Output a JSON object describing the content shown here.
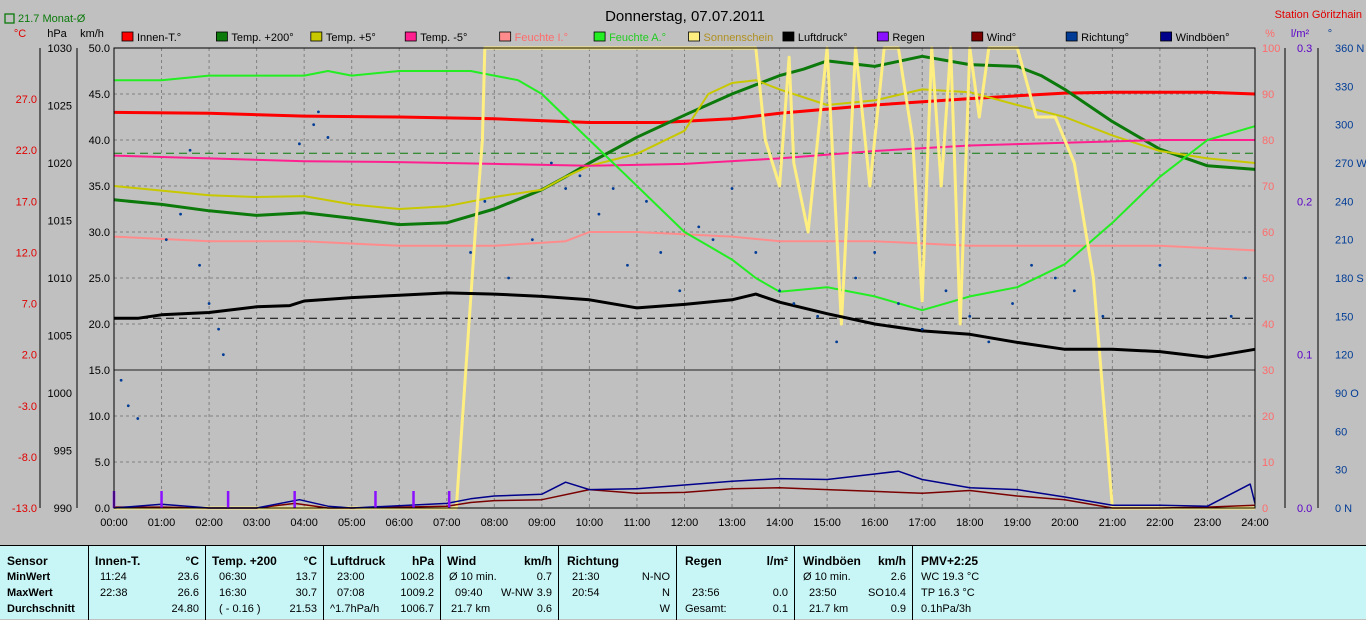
{
  "title": "Donnerstag, 07.07.2011",
  "station": "Station Göritzhain",
  "monthly_avg": "21.7 Monat-Ø",
  "unit_labels": {
    "celsius": "°C",
    "hpa": "hPa",
    "kmh": "km/h",
    "percent": "%",
    "lm2": "l/m²",
    "degree": "°"
  },
  "legend": [
    {
      "label": "Innen-T.°",
      "color": "#ff0000"
    },
    {
      "label": "Temp. +200°",
      "color": "#0b7a0b"
    },
    {
      "label": "Temp. +5°",
      "color": "#c8c800"
    },
    {
      "label": "Temp. -5°",
      "color": "#ff1f8f"
    },
    {
      "label": "Feuchte I.°",
      "color": "#ff8c8c"
    },
    {
      "label": "Feuchte A.°",
      "color": "#22ee22"
    },
    {
      "label": "Sonnenschein",
      "color": "#ffef80"
    },
    {
      "label": "Luftdruck°",
      "color": "#000000"
    },
    {
      "label": "Regen",
      "color": "#8a10ff"
    },
    {
      "label": "Wind°",
      "color": "#7a0000"
    },
    {
      "label": "Richtung°",
      "color": "#003c96"
    },
    {
      "label": "Windböen°",
      "color": "#00008b"
    }
  ],
  "chart_data": {
    "type": "line",
    "title": "Donnerstag, 07.07.2011",
    "x_unit": "hours",
    "xlim": [
      0,
      24
    ],
    "x_ticks": [
      "00:00",
      "01:00",
      "02:00",
      "03:00",
      "04:00",
      "05:00",
      "06:00",
      "07:00",
      "08:00",
      "09:00",
      "10:00",
      "11:00",
      "12:00",
      "13:00",
      "14:00",
      "15:00",
      "16:00",
      "17:00",
      "18:00",
      "19:00",
      "20:00",
      "21:00",
      "22:00",
      "23:00",
      "24:00"
    ],
    "axes": {
      "celsius": {
        "ticks": [
          "27.0",
          "22.0",
          "17.0",
          "12.0",
          "7.0",
          "2.0",
          "-3.0",
          "-8.0",
          "-13.0"
        ],
        "range": [
          -13,
          32
        ]
      },
      "hpa": {
        "ticks": [
          "1030",
          "1025",
          "1020",
          "1015",
          "1010",
          "1005",
          "1000",
          "995",
          "990"
        ],
        "range": [
          990,
          1030
        ]
      },
      "kmh": {
        "ticks": [
          "50.0",
          "45.0",
          "40.0",
          "35.0",
          "30.0",
          "25.0",
          "20.0",
          "15.0",
          "10.0",
          "5.0",
          "0.0"
        ],
        "range": [
          0,
          50
        ]
      },
      "percent": {
        "ticks": [
          "100",
          "90",
          "80",
          "70",
          "60",
          "50",
          "40",
          "30",
          "20",
          "10",
          "0"
        ],
        "range": [
          0,
          100
        ]
      },
      "lm2": {
        "ticks": [
          "0.3",
          "0.2",
          "0.1",
          "0.0"
        ],
        "range": [
          0,
          0.3
        ]
      },
      "degree": {
        "ticks": [
          "360 N",
          "330",
          "300",
          "270 W",
          "240",
          "210",
          "180 S",
          "150",
          "120",
          "90 O",
          "60",
          "30",
          "0 N"
        ],
        "range": [
          0,
          360
        ]
      }
    },
    "series": [
      {
        "name": "Innen-T.°",
        "axis": "kmh",
        "x": [
          0,
          2,
          4,
          6,
          8,
          10,
          11.5,
          13,
          14,
          16,
          18,
          19,
          20,
          21,
          22,
          23,
          24
        ],
        "y": [
          43.0,
          42.9,
          42.6,
          42.5,
          42.3,
          41.9,
          41.9,
          42.3,
          42.9,
          43.8,
          44.5,
          44.8,
          45.1,
          45.2,
          45.2,
          45.2,
          45.0
        ]
      },
      {
        "name": "Temp. +200°",
        "axis": "kmh",
        "x": [
          0,
          1,
          2,
          3,
          4,
          5,
          6,
          7,
          8,
          9,
          9.5,
          10,
          11,
          12,
          13,
          13.5,
          14,
          14.5,
          15,
          16,
          17,
          18,
          19,
          19.5,
          20,
          21,
          22,
          23,
          24
        ],
        "y": [
          33.5,
          33.0,
          32.3,
          31.8,
          32.1,
          31.5,
          30.8,
          31.0,
          32.5,
          34.6,
          36.0,
          37.5,
          40.3,
          42.7,
          45.0,
          46.0,
          47.0,
          47.7,
          48.6,
          48.0,
          49.1,
          48.2,
          48.0,
          47.0,
          45.5,
          42.0,
          39.0,
          37.2,
          36.8
        ]
      },
      {
        "name": "Temp. +5°",
        "axis": "kmh",
        "x": [
          0,
          1,
          2,
          3,
          4,
          5,
          6,
          7,
          8,
          9,
          9.5,
          10,
          11,
          12,
          12.5,
          13,
          13.5,
          14,
          15,
          16,
          17,
          18,
          19,
          20,
          21,
          22,
          23,
          24
        ],
        "y": [
          35.0,
          34.5,
          34.0,
          33.8,
          33.9,
          33.0,
          32.5,
          32.8,
          33.8,
          34.6,
          36.0,
          37.2,
          38.5,
          41.0,
          45.0,
          46.2,
          46.5,
          45.5,
          43.8,
          44.3,
          45.5,
          45.2,
          43.8,
          42.5,
          40.5,
          38.8,
          38.0,
          37.5
        ]
      },
      {
        "name": "Temp. -5°",
        "axis": "kmh",
        "x": [
          0,
          2,
          4,
          6,
          8,
          10,
          12,
          14,
          16,
          18,
          20,
          22,
          24
        ],
        "y": [
          38.3,
          38.0,
          37.7,
          37.6,
          37.4,
          37.2,
          37.4,
          38.0,
          38.8,
          39.4,
          39.7,
          40.0,
          40.0
        ]
      },
      {
        "name": "Feuchte I.°",
        "axis": "percent",
        "x": [
          0,
          2,
          4,
          6,
          8,
          9.5,
          10,
          11,
          13,
          14,
          16,
          18,
          20,
          22,
          24
        ],
        "y": [
          59,
          58,
          58,
          57,
          57,
          58,
          60,
          60,
          59,
          58,
          58,
          57,
          57,
          57,
          56
        ]
      },
      {
        "name": "Feuchte A.°",
        "axis": "percent",
        "x": [
          0,
          1,
          2,
          3,
          4,
          4.5,
          5,
          6,
          7,
          7.5,
          8,
          8.5,
          9,
          9.5,
          10,
          11,
          12,
          12.5,
          13,
          13.5,
          14,
          15,
          16,
          17,
          18,
          19,
          20,
          21,
          22,
          23,
          24
        ],
        "y": [
          93,
          93,
          94,
          94,
          94,
          95,
          94,
          95,
          95,
          95,
          94,
          93,
          90,
          85,
          80,
          70,
          60,
          57,
          54,
          50,
          47,
          48,
          46,
          43,
          46,
          48,
          53,
          62,
          72,
          80,
          83
        ]
      },
      {
        "name": "Sonnenschein",
        "axis": "percent",
        "x": [
          0,
          7.2,
          7.6,
          7.75,
          7.8,
          8.5,
          9,
          9.7,
          13.5,
          13.7,
          14,
          14.2,
          14.3,
          14.6,
          15,
          15.3,
          15.6,
          15.9,
          16.2,
          16.5,
          16.8,
          17.0,
          17.2,
          17.4,
          17.6,
          17.8,
          18.0,
          18.2,
          18.4,
          18.6,
          19.0,
          19.4,
          19.8,
          20.2,
          20.6,
          21,
          24
        ],
        "y": [
          0,
          0,
          60,
          80,
          100,
          100,
          100,
          100,
          100,
          80,
          70,
          98,
          75,
          60,
          100,
          40,
          100,
          70,
          100,
          100,
          80,
          45,
          100,
          70,
          100,
          40,
          100,
          85,
          100,
          100,
          100,
          85,
          85,
          75,
          50,
          0,
          0
        ]
      },
      {
        "name": "Luftdruck°",
        "axis": "hpa",
        "x": [
          0,
          0.5,
          1,
          2,
          3,
          3.7,
          4,
          5,
          6,
          7,
          8,
          9,
          10,
          11,
          12,
          13,
          13.5,
          14,
          15,
          16,
          17,
          18,
          19,
          20,
          21,
          22,
          23,
          24
        ],
        "y": [
          1006.5,
          1006.5,
          1006.8,
          1007.0,
          1007.5,
          1007.6,
          1008.0,
          1008.3,
          1008.5,
          1008.7,
          1008.6,
          1008.4,
          1008.1,
          1007.4,
          1007.7,
          1008.1,
          1008.6,
          1007.9,
          1006.9,
          1006.0,
          1005.4,
          1005.1,
          1004.4,
          1003.8,
          1003.8,
          1003.6,
          1003.1,
          1003.8
        ]
      },
      {
        "name": "Wind°",
        "axis": "kmh",
        "x": [
          0,
          1,
          2,
          3,
          3.8,
          4.5,
          5,
          7,
          7.5,
          8,
          9,
          10,
          11,
          12,
          13,
          14,
          15,
          16,
          17,
          18,
          19,
          20,
          21,
          22,
          23,
          24
        ],
        "y": [
          0.1,
          0.1,
          0.0,
          0.0,
          0.5,
          0.0,
          0.0,
          0.2,
          0.6,
          0.8,
          0.9,
          2.0,
          1.6,
          1.7,
          2.1,
          2.2,
          2.0,
          1.8,
          1.6,
          1.9,
          1.3,
          0.9,
          0.0,
          0.0,
          0.1,
          0.3
        ]
      },
      {
        "name": "Windböen°",
        "axis": "kmh",
        "x": [
          0,
          1,
          2,
          3,
          3.9,
          4.5,
          5,
          7,
          7.5,
          8,
          9,
          9.5,
          10,
          11,
          12,
          13,
          14,
          15,
          16,
          16.5,
          17,
          18,
          19,
          20,
          21,
          22,
          23,
          23.9,
          24
        ],
        "y": [
          0,
          0.4,
          0.0,
          0.0,
          0.9,
          0.2,
          0.0,
          0.5,
          1.0,
          1.3,
          1.5,
          2.8,
          2.0,
          2.1,
          2.5,
          2.9,
          3.2,
          3.1,
          3.7,
          4.0,
          3.1,
          2.2,
          2.0,
          1.2,
          0.3,
          0.3,
          0.2,
          2.6,
          0.5
        ]
      },
      {
        "name": "Regen",
        "axis": "lm2",
        "x": [
          0,
          1.0,
          2.4,
          3.8,
          5.5,
          6.3,
          7.05
        ],
        "y": [
          0.01,
          0.01,
          0.01,
          0.01,
          0.01,
          0.01,
          0.01
        ]
      },
      {
        "name": "Richtung°",
        "axis": "degree",
        "type": "scatter",
        "x": [
          0.15,
          0.3,
          0.5,
          1.1,
          1.4,
          1.6,
          1.8,
          2.0,
          2.2,
          2.3,
          3.9,
          4.2,
          4.3,
          4.5,
          7.5,
          7.8,
          8.3,
          8.8,
          9.2,
          9.5,
          9.8,
          10.2,
          10.5,
          10.8,
          11.2,
          11.5,
          11.9,
          12.3,
          12.6,
          13.0,
          13.5,
          14.0,
          14.3,
          14.8,
          15.2,
          15.6,
          16.0,
          16.5,
          17.0,
          17.5,
          18.0,
          18.4,
          18.9,
          19.3,
          19.8,
          20.2,
          20.8,
          22.0,
          23.5,
          23.8
        ],
        "y": [
          100,
          80,
          70,
          210,
          230,
          280,
          190,
          160,
          140,
          120,
          285,
          300,
          310,
          290,
          200,
          240,
          180,
          210,
          270,
          250,
          260,
          230,
          250,
          190,
          240,
          200,
          170,
          220,
          210,
          250,
          200,
          170,
          160,
          150,
          130,
          180,
          200,
          160,
          140,
          170,
          150,
          130,
          160,
          190,
          180,
          170,
          150,
          190,
          150,
          180
        ]
      }
    ],
    "reference_lines": [
      {
        "axis": "celsius",
        "value": 21.7,
        "label": "21.7 Monat-Ø"
      },
      {
        "axis": "hpa",
        "value": 1006.5
      },
      {
        "axis": "kmh",
        "value": 15
      }
    ]
  },
  "stats": {
    "sensor": {
      "hdr": "Sensor",
      "rows": [
        "MinWert",
        "MaxWert",
        "Durchschnitt"
      ]
    },
    "innen": {
      "hdr": "Innen-T.",
      "unit": "°C",
      "rows": [
        [
          "11:24",
          "23.6"
        ],
        [
          "22:38",
          "26.6"
        ],
        [
          "",
          "24.80"
        ]
      ]
    },
    "temp": {
      "hdr": "Temp. +200",
      "unit": "°C",
      "rows": [
        [
          "06:30",
          "13.7"
        ],
        [
          "16:30",
          "30.7"
        ],
        [
          "( - 0.16 )",
          "21.53"
        ]
      ]
    },
    "luft": {
      "hdr": "Luftdruck",
      "unit": "hPa",
      "rows": [
        [
          "23:00",
          "1002.8"
        ],
        [
          "07:08",
          "1009.2"
        ],
        [
          "^1.7hPa/h",
          "1006.7"
        ]
      ]
    },
    "wind": {
      "hdr": "Wind",
      "unit": "km/h",
      "rows": [
        [
          "Ø 10 min.",
          "",
          "0.7"
        ],
        [
          "09:40",
          "W-NW",
          "3.9"
        ],
        [
          "21.7 km",
          "",
          "0.6"
        ]
      ]
    },
    "richt": {
      "hdr": "Richtung",
      "unit": "",
      "rows": [
        [
          "21:30",
          "N-NO"
        ],
        [
          "20:54",
          "N"
        ],
        [
          "",
          "W"
        ]
      ]
    },
    "regen": {
      "hdr": "Regen",
      "unit": "l/m²",
      "rows": [
        [
          "",
          ""
        ],
        [
          "23:56",
          "0.0"
        ],
        [
          "Gesamt:",
          "0.1"
        ]
      ]
    },
    "boeen": {
      "hdr": "Windböen",
      "unit": "km/h",
      "rows": [
        [
          "Ø 10 min.",
          "",
          "2.6"
        ],
        [
          "23:50",
          "SO",
          "10.4"
        ],
        [
          "21.7 km",
          "",
          "0.9"
        ]
      ]
    },
    "pmv": {
      "hdr": "PMV+2:25",
      "rows": [
        "WC 19.3 °C",
        "TP 16.3 °C",
        "0.1hPa/3h"
      ]
    }
  }
}
